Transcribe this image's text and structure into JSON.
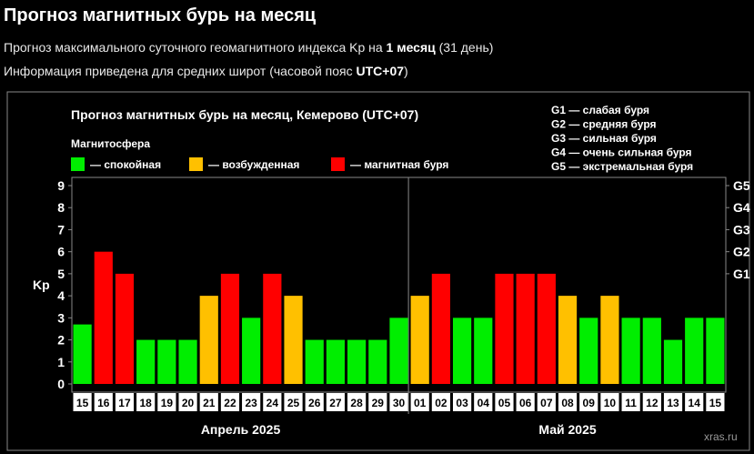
{
  "page": {
    "title": "Прогноз магнитных бурь на месяц",
    "line1_prefix": "Прогноз максимального суточного геомагнитного индекса Kp на ",
    "line1_bold": "1 месяц",
    "line1_suffix": " (31 день)",
    "line2_prefix": "Информация приведена для средних широт (часовой пояс ",
    "line2_bold": "UTC+07",
    "line2_suffix": ")"
  },
  "chart_data": {
    "type": "bar",
    "title": "Прогноз магнитных бурь на месяц, Кемерово (UTC+07)",
    "legend_title": "Магнитосфера",
    "legend": [
      {
        "label": "— спокойная",
        "color": "#00ee00"
      },
      {
        "label": "— возбужденная",
        "color": "#ffc000"
      },
      {
        "label": "— магнитная буря",
        "color": "#ff0000"
      }
    ],
    "storm_levels": [
      "G1 — слабая буря",
      "G2 — средняя буря",
      "G3 — сильная буря",
      "G4 — очень сильная буря",
      "G5 — экстремальная буря"
    ],
    "ylabel": "Kp",
    "ylim": [
      0,
      9
    ],
    "yticks": [
      0,
      1,
      2,
      3,
      4,
      5,
      6,
      7,
      8,
      9
    ],
    "right_ticks": [
      {
        "label": "G1",
        "value": 5
      },
      {
        "label": "G2",
        "value": 6
      },
      {
        "label": "G3",
        "value": 7
      },
      {
        "label": "G4",
        "value": 8
      },
      {
        "label": "G5",
        "value": 9
      }
    ],
    "categories": [
      "15",
      "16",
      "17",
      "18",
      "19",
      "20",
      "21",
      "22",
      "23",
      "24",
      "25",
      "26",
      "27",
      "28",
      "29",
      "30",
      "01",
      "02",
      "03",
      "04",
      "05",
      "06",
      "07",
      "08",
      "09",
      "10",
      "11",
      "12",
      "13",
      "14",
      "15"
    ],
    "values": [
      2.7,
      6,
      5,
      2,
      2,
      2,
      4,
      5,
      3,
      5,
      4,
      2,
      2,
      2,
      2,
      3,
      4,
      5,
      3,
      3,
      5,
      5,
      5,
      4,
      3,
      4,
      3,
      3,
      2,
      3,
      3
    ],
    "months": [
      "Апрель 2025",
      "Май 2025"
    ],
    "month_split_index": 16,
    "watermark": "xras.ru",
    "colors": {
      "calm": "#00ee00",
      "excited": "#ffc000",
      "storm": "#ff0000",
      "frame": "#888888"
    }
  }
}
